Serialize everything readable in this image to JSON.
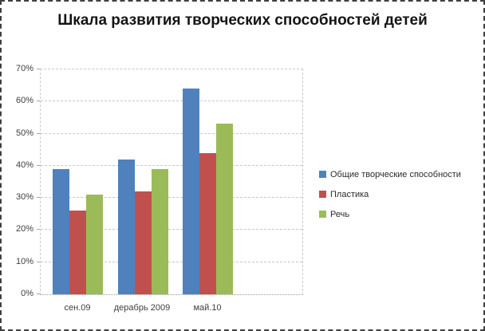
{
  "title": "Шкала развития творческих способностей детей",
  "chart_data": {
    "type": "bar",
    "title": "Шкала развития творческих способностей детей",
    "categories": [
      "сен.09",
      "дерабрь 2009",
      "май.10"
    ],
    "series": [
      {
        "name": "Общие творческие  способности",
        "color": "#4F81BD",
        "values": [
          39,
          42,
          64
        ]
      },
      {
        "name": "Пластика",
        "color": "#C0504D",
        "values": [
          26,
          32,
          44
        ]
      },
      {
        "name": "Речь",
        "color": "#9BBB59",
        "values": [
          31,
          39,
          53
        ]
      }
    ],
    "xlabel": "",
    "ylabel": "",
    "ylim": [
      0,
      70
    ],
    "ytick_step": 10,
    "ytick_suffix": "%",
    "grid": true,
    "legend_position": "right"
  },
  "colors": {
    "background": "#ffffff",
    "outer_border": "#3f3f3f",
    "gridline": "#c9c9c9",
    "axis_line": "#999999",
    "axis_text": "#3f3f3f",
    "title_text": "#141414"
  }
}
